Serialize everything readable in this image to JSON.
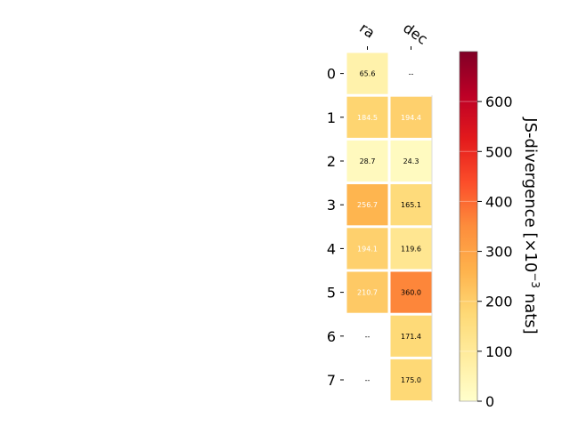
{
  "chart_data": {
    "type": "heatmap",
    "columns": [
      "ra",
      "dec"
    ],
    "rows": [
      "0",
      "1",
      "2",
      "3",
      "4",
      "5",
      "6",
      "7"
    ],
    "values": [
      [
        65.6,
        null
      ],
      [
        184.5,
        194.4
      ],
      [
        28.7,
        24.3
      ],
      [
        256.7,
        165.1
      ],
      [
        194.1,
        119.6
      ],
      [
        210.7,
        360.0
      ],
      [
        null,
        171.4
      ],
      [
        null,
        175.0
      ]
    ],
    "cell_text": [
      [
        "65.6",
        "--"
      ],
      [
        "184.5",
        "194.4"
      ],
      [
        "28.7",
        "24.3"
      ],
      [
        "256.7",
        "165.1"
      ],
      [
        "194.1",
        "119.6"
      ],
      [
        "210.7",
        "360.0"
      ],
      [
        "--",
        "171.4"
      ],
      [
        "--",
        "175.0"
      ]
    ],
    "colorbar": {
      "label_main": "JS-divergence [×10",
      "label_exp": "−3",
      "label_tail": " nats]",
      "range": [
        0,
        700
      ],
      "ticks": [
        "0",
        "100",
        "200",
        "300",
        "400",
        "500",
        "600"
      ],
      "tick_values": [
        0,
        100,
        200,
        300,
        400,
        500,
        600
      ],
      "colormap": "YlOrRd"
    }
  }
}
